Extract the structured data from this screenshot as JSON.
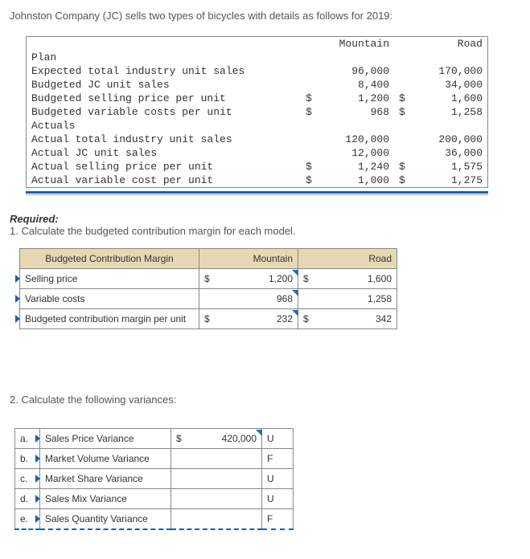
{
  "intro": "Johnston Company (JC) sells two types of bicycles with details as follows for 2019:",
  "data_table": {
    "cols": [
      "Mountain",
      "Road"
    ],
    "sections": [
      {
        "header": "Plan",
        "rows": [
          {
            "label": "Expected total industry unit sales",
            "m": "96,000",
            "r": "170,000",
            "sym_m": "",
            "sym_r": ""
          },
          {
            "label": "Budgeted JC unit sales",
            "m": "8,400",
            "r": "34,000",
            "sym_m": "",
            "sym_r": ""
          },
          {
            "label": "Budgeted selling price per unit",
            "m": "1,200",
            "r": "1,600",
            "sym_m": "$",
            "sym_r": "$"
          },
          {
            "label": "Budgeted variable costs per unit",
            "m": "968",
            "r": "1,258",
            "sym_m": "$",
            "sym_r": "$"
          }
        ]
      },
      {
        "header": "Actuals",
        "rows": [
          {
            "label": "Actual total industry unit sales",
            "m": "120,000",
            "r": "200,000",
            "sym_m": "",
            "sym_r": ""
          },
          {
            "label": "Actual JC unit sales",
            "m": "12,000",
            "r": "36,000",
            "sym_m": "",
            "sym_r": ""
          },
          {
            "label": "Actual selling price per unit",
            "m": "1,240",
            "r": "1,575",
            "sym_m": "$",
            "sym_r": "$"
          },
          {
            "label": "Actual variable cost per unit",
            "m": "1,000",
            "r": "1,275",
            "sym_m": "$",
            "sym_r": "$"
          }
        ]
      }
    ]
  },
  "required_label": "Required:",
  "req1": "1. Calculate the budgeted contribution margin for each model.",
  "contrib_table": {
    "headers": [
      "Budgeted Contribution Margin",
      "Mountain",
      "Road"
    ],
    "rows": [
      {
        "label": "Selling price",
        "m_sym": "$",
        "m": "1,200",
        "r_sym": "$",
        "r": "1,600",
        "flag_m": true
      },
      {
        "label": "Variable costs",
        "m_sym": "",
        "m": "968",
        "r_sym": "",
        "r": "1,258",
        "flag_m": true
      },
      {
        "label": "Budgeted contribution margin per unit",
        "m_sym": "$",
        "m": "232",
        "r_sym": "$",
        "r": "342",
        "flag_m": true
      }
    ]
  },
  "req2": "2. Calculate the following variances:",
  "var_table": {
    "rows": [
      {
        "idx": "a.",
        "label": "Sales Price Variance",
        "sym": "$",
        "val": "420,000",
        "uf": "U",
        "flag": true
      },
      {
        "idx": "b.",
        "label": "Market Volume Variance",
        "sym": "",
        "val": "",
        "uf": "F",
        "flag": false
      },
      {
        "idx": "c.",
        "label": "Market Share Variance",
        "sym": "",
        "val": "",
        "uf": "U",
        "flag": false
      },
      {
        "idx": "d.",
        "label": "Sales Mix Variance",
        "sym": "",
        "val": "",
        "uf": "U",
        "flag": false
      },
      {
        "idx": "e.",
        "label": "Sales Quantity Variance",
        "sym": "",
        "val": "",
        "uf": "F",
        "flag": false
      }
    ]
  },
  "colors": {
    "header_bg": "#e6d8b5",
    "accent": "#1a5fb4",
    "flag": "#2b6ca3",
    "border": "#888888"
  }
}
